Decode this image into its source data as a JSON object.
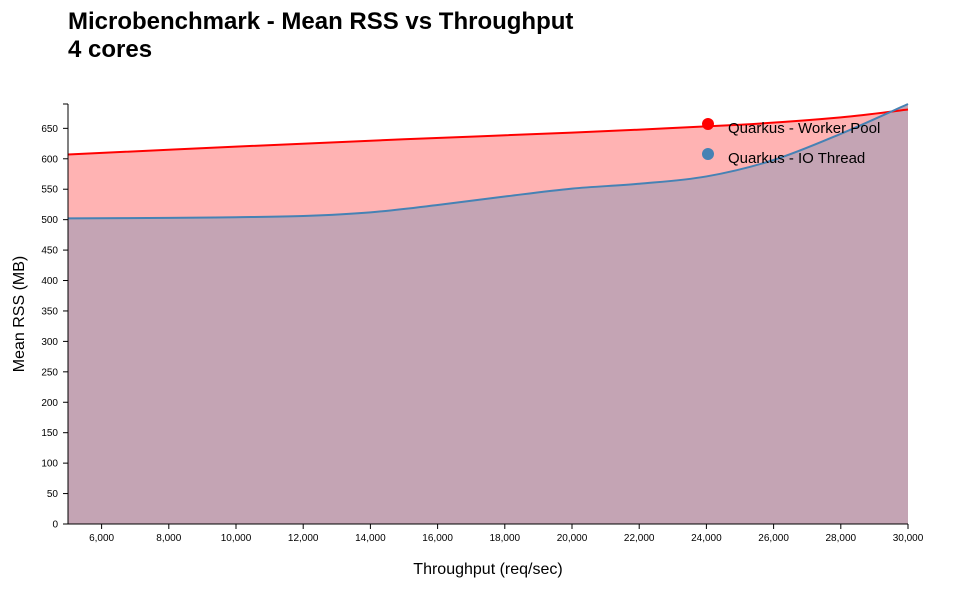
{
  "chart_data": {
    "type": "area",
    "title": "Microbenchmark - Mean RSS vs Throughput",
    "subtitle": "4 cores",
    "xlabel": "Throughput (req/sec)",
    "ylabel": "Mean RSS (MB)",
    "xlim": [
      5000,
      30000
    ],
    "ylim": [
      0,
      690
    ],
    "x_ticks": [
      6000,
      8000,
      10000,
      12000,
      14000,
      16000,
      18000,
      20000,
      22000,
      24000,
      26000,
      28000,
      30000
    ],
    "x_tick_labels": [
      "6,000",
      "8,000",
      "10,000",
      "12,000",
      "14,000",
      "16,000",
      "18,000",
      "20,000",
      "22,000",
      "24,000",
      "26,000",
      "28,000",
      "30,000"
    ],
    "y_ticks": [
      0,
      50,
      100,
      150,
      200,
      250,
      300,
      350,
      400,
      450,
      500,
      550,
      600,
      650
    ],
    "y_tick_labels": [
      "0",
      "50",
      "100",
      "150",
      "200",
      "250",
      "300",
      "350",
      "400",
      "450",
      "500",
      "550",
      "600",
      "650"
    ],
    "grid": false,
    "legend_position": "top-right",
    "series": [
      {
        "name": "Quarkus - Worker Pool",
        "color": "#ff0000",
        "fill": "#ffb3b3",
        "x": [
          5000,
          10000,
          15000,
          20000,
          25000,
          28000,
          30000
        ],
        "y": [
          607,
          620,
          632,
          643,
          656,
          668,
          681
        ]
      },
      {
        "name": "Quarkus - IO Thread",
        "color": "#4682b4",
        "fill": "#c4a4b4",
        "x": [
          5000,
          8000,
          10000,
          12000,
          14000,
          16000,
          18000,
          20000,
          22000,
          24000,
          26000,
          28000,
          30000
        ],
        "y": [
          502,
          503,
          504,
          506,
          512,
          524,
          538,
          551,
          559,
          571,
          598,
          641,
          690
        ]
      }
    ]
  }
}
